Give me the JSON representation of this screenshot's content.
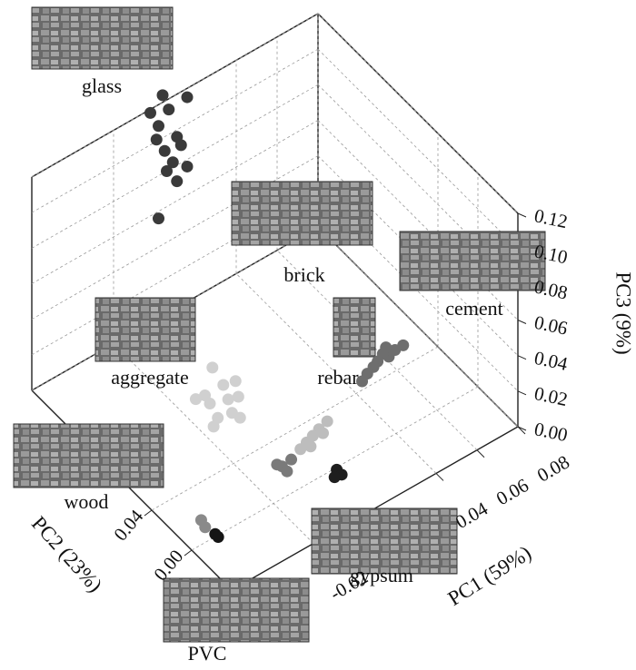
{
  "chart_data": {
    "type": "scatter3d",
    "xlabel": "PC1 (59%)",
    "ylabel": "PC2 (23%)",
    "zlabel": "PC3 (9%)",
    "xlim": [
      -0.06,
      0.08
    ],
    "ylim": [
      -0.04,
      0.16
    ],
    "zlim": [
      0,
      0.12
    ],
    "xticks": [
      -0.02,
      0.04,
      0.06,
      0.08
    ],
    "yticks": [
      {
        "value": 0,
        "label": "0.00"
      },
      0.04
    ],
    "zticks": [
      {
        "value": 0,
        "label": "0.00"
      },
      0.02,
      0.04,
      0.06,
      0.08,
      {
        "value": 0.1,
        "label": "0.10"
      },
      0.12
    ],
    "grid": true,
    "series": [
      {
        "name": "glass",
        "color": "#3a3a3a",
        "x": [
          0.004,
          0.016,
          -0.002,
          0.007,
          0.002,
          0.011,
          0.001,
          0.005,
          0.013,
          0.009,
          0.006,
          0.016,
          0.011,
          0.002
        ],
        "y": [
          0.16,
          0.16,
          0.16,
          0.16,
          0.16,
          0.16,
          0.16,
          0.16,
          0.16,
          0.16,
          0.16,
          0.16,
          0.16,
          0.16
        ],
        "z": [
          0.124,
          0.115,
          0.118,
          0.114,
          0.108,
          0.096,
          0.101,
          0.092,
          0.09,
          0.083,
          0.08,
          0.076,
          0.071,
          0.056
        ]
      },
      {
        "name": "rebar",
        "color": "#6e6e6e",
        "x": [
          0.063,
          0.059,
          0.055,
          0.054,
          0.05,
          0.047,
          0.043,
          0.039,
          0.057
        ],
        "y": [
          0.04,
          0.04,
          0.038,
          0.042,
          0.039,
          0.037,
          0.035,
          0.032,
          0.045
        ],
        "z": [
          0.012,
          0.012,
          0.012,
          0.012,
          0.012,
          0.012,
          0.012,
          0.012,
          0.012
        ]
      },
      {
        "name": "aggregate",
        "color": "#d0d0d0",
        "x": [
          0.0,
          0.003,
          -0.002,
          -0.015,
          -0.012,
          -0.005,
          -0.001,
          -0.014,
          -0.008,
          -0.018,
          -0.011,
          -0.007
        ],
        "y": [
          0.102,
          0.085,
          0.087,
          0.088,
          0.08,
          0.076,
          0.074,
          0.068,
          0.066,
          0.064,
          0.087,
          0.06
        ],
        "z": [
          0.006,
          0.006,
          0.006,
          0.006,
          0.006,
          0.006,
          0.006,
          0.006,
          0.006,
          0.006,
          0.006,
          0.006
        ]
      },
      {
        "name": "brick",
        "color": "#bdbdbd",
        "x": [
          0.019,
          0.014,
          0.01,
          0.006,
          0.002,
          0.014,
          0.006
        ],
        "y": [
          0.026,
          0.024,
          0.022,
          0.02,
          0.018,
          0.02,
          0.016
        ],
        "z": [
          0.006,
          0.006,
          0.006,
          0.006,
          0.006,
          0.006,
          0.006
        ]
      },
      {
        "name": "cement",
        "color": "#7a7a7a",
        "x": [
          -0.008,
          -0.003,
          -0.008,
          -0.009
        ],
        "y": [
          0.016,
          0.017,
          0.011,
          0.019
        ],
        "z": [
          0.004,
          0.004,
          0.004,
          0.004
        ]
      },
      {
        "name": "gypsum",
        "color": "#1e1e1e",
        "x": [
          0.008,
          0.008,
          0.005
        ],
        "y": [
          -0.006,
          -0.011,
          -0.01
        ],
        "z": [
          0.004,
          0.004,
          0.004
        ]
      },
      {
        "name": "wood",
        "color": "#8a8a8a",
        "x": [
          -0.049,
          -0.05
        ],
        "y": [
          0.013,
          0.007
        ],
        "z": [
          0.0024,
          0.0024
        ]
      },
      {
        "name": "PVC",
        "color": "#151515",
        "x": [
          -0.049,
          -0.049
        ],
        "y": [
          -0.001,
          -0.004
        ],
        "z": [
          0.0024,
          0.0024
        ]
      }
    ]
  }
}
